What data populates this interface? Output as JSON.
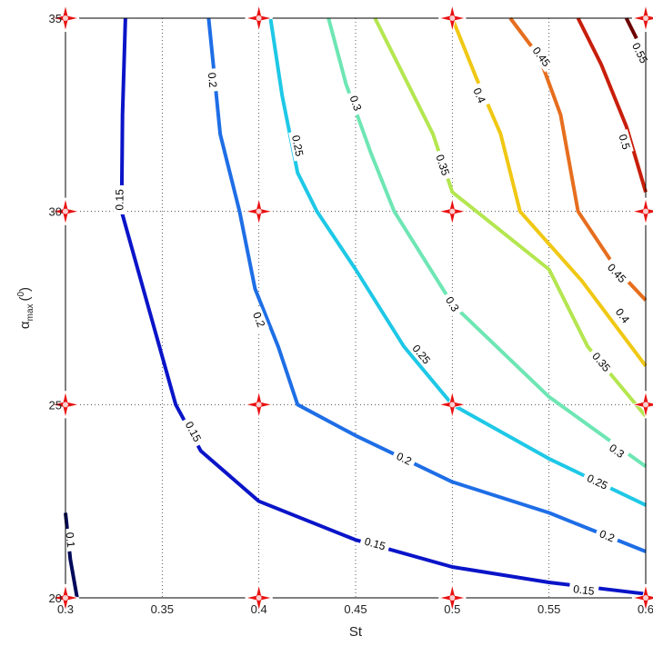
{
  "chart_data": {
    "type": "contour",
    "title": "",
    "xlabel": "St",
    "ylabel_main": "α",
    "ylabel_sub": "max",
    "ylabel_sup": "0",
    "ylabel_unit_open": "(",
    "ylabel_unit_close": ")",
    "xlim": [
      0.3,
      0.6
    ],
    "ylim": [
      20,
      35
    ],
    "xticks": [
      0.3,
      0.35,
      0.4,
      0.45,
      0.5,
      0.55,
      0.6
    ],
    "xtick_labels": [
      "0.3",
      "0.35",
      "0.4",
      "0.45",
      "0.5",
      "0.55",
      "0.6"
    ],
    "yticks": [
      20,
      25,
      30,
      35
    ],
    "ytick_labels": [
      "20",
      "25",
      "30",
      "35"
    ],
    "grid": true,
    "colors": {
      "0.1": "#000a5a",
      "0.15": "#0a14c8",
      "0.2": "#1e6ee6",
      "0.25": "#1ec8e6",
      "0.3": "#6ee6b4",
      "0.35": "#b4e650",
      "0.4": "#f0c814",
      "0.45": "#e66e1e",
      "0.5": "#c81e0a",
      "0.55": "#6e0000"
    },
    "levels": [
      {
        "level": 0.1,
        "label": "0.1",
        "points": [
          [
            0.3,
            22.2
          ],
          [
            0.3025,
            21.0
          ],
          [
            0.306,
            20
          ]
        ],
        "labels": [
          [
            0.3025,
            21.5
          ]
        ]
      },
      {
        "level": 0.15,
        "label": "0.15",
        "points": [
          [
            0.331,
            35
          ],
          [
            0.3295,
            32.5
          ],
          [
            0.329,
            30
          ],
          [
            0.343,
            27.5
          ],
          [
            0.357,
            25
          ],
          [
            0.37,
            23.8
          ],
          [
            0.4,
            22.5
          ],
          [
            0.45,
            21.5
          ],
          [
            0.5,
            20.8
          ],
          [
            0.55,
            20.4
          ],
          [
            0.6,
            20.1
          ]
        ],
        "labels": [
          [
            0.328,
            30.3
          ],
          [
            0.366,
            24.3
          ],
          [
            0.46,
            21.4
          ],
          [
            0.568,
            20.2
          ]
        ]
      },
      {
        "level": 0.2,
        "label": "0.2",
        "points": [
          [
            0.374,
            35
          ],
          [
            0.377,
            33.5
          ],
          [
            0.38,
            32
          ],
          [
            0.39,
            30
          ],
          [
            0.398,
            28
          ],
          [
            0.41,
            26.5
          ],
          [
            0.42,
            25
          ],
          [
            0.45,
            24.2
          ],
          [
            0.5,
            23.0
          ],
          [
            0.55,
            22.2
          ],
          [
            0.6,
            21.2
          ]
        ],
        "labels": [
          [
            0.376,
            33.4
          ],
          [
            0.4,
            27.2
          ],
          [
            0.475,
            23.6
          ],
          [
            0.58,
            21.6
          ]
        ]
      },
      {
        "level": 0.25,
        "label": "0.25",
        "points": [
          [
            0.406,
            35
          ],
          [
            0.412,
            33
          ],
          [
            0.42,
            31
          ],
          [
            0.43,
            30
          ],
          [
            0.45,
            28.5
          ],
          [
            0.475,
            26.5
          ],
          [
            0.5,
            25
          ],
          [
            0.55,
            23.6
          ],
          [
            0.6,
            22.4
          ]
        ],
        "labels": [
          [
            0.42,
            31.7
          ],
          [
            0.484,
            26.3
          ],
          [
            0.575,
            23.0
          ]
        ]
      },
      {
        "level": 0.3,
        "label": "0.3",
        "points": [
          [
            0.436,
            35
          ],
          [
            0.445,
            33.3
          ],
          [
            0.458,
            31.5
          ],
          [
            0.47,
            30
          ],
          [
            0.5,
            27.6
          ],
          [
            0.55,
            25.2
          ],
          [
            0.6,
            23.4
          ]
        ],
        "labels": [
          [
            0.45,
            32.8
          ],
          [
            0.5,
            27.6
          ],
          [
            0.585,
            23.8
          ]
        ]
      },
      {
        "level": 0.35,
        "label": "0.35",
        "points": [
          [
            0.46,
            35
          ],
          [
            0.475,
            33.5
          ],
          [
            0.49,
            32
          ],
          [
            0.5,
            30.5
          ],
          [
            0.55,
            28.5
          ],
          [
            0.57,
            26.5
          ],
          [
            0.6,
            24.7
          ]
        ],
        "labels": [
          [
            0.495,
            31.2
          ],
          [
            0.577,
            26.1
          ]
        ]
      },
      {
        "level": 0.4,
        "label": "0.4",
        "points": [
          [
            0.5,
            35
          ],
          [
            0.512,
            33.5
          ],
          [
            0.525,
            32
          ],
          [
            0.535,
            30
          ],
          [
            0.567,
            28.2
          ],
          [
            0.6,
            26
          ]
        ],
        "labels": [
          [
            0.514,
            33
          ],
          [
            0.588,
            27.3
          ]
        ]
      },
      {
        "level": 0.45,
        "label": "0.45",
        "points": [
          [
            0.53,
            35
          ],
          [
            0.545,
            34
          ],
          [
            0.556,
            32.5
          ],
          [
            0.565,
            30
          ],
          [
            0.585,
            28.5
          ],
          [
            0.6,
            27.7
          ]
        ],
        "labels": [
          [
            0.546,
            34
          ],
          [
            0.585,
            28.4
          ]
        ]
      },
      {
        "level": 0.5,
        "label": "0.5",
        "points": [
          [
            0.565,
            35
          ],
          [
            0.577,
            33.8
          ],
          [
            0.59,
            32.2
          ],
          [
            0.6,
            30.5
          ]
        ],
        "labels": [
          [
            0.589,
            31.8
          ]
        ]
      },
      {
        "level": 0.55,
        "label": "0.55",
        "points": [
          [
            0.59,
            35
          ],
          [
            0.6,
            34
          ]
        ],
        "labels": [
          [
            0.597,
            34.1
          ]
        ]
      }
    ],
    "markers": [
      {
        "x": 0.3,
        "y": 35
      },
      {
        "x": 0.4,
        "y": 35
      },
      {
        "x": 0.5,
        "y": 35
      },
      {
        "x": 0.6,
        "y": 35
      },
      {
        "x": 0.3,
        "y": 30
      },
      {
        "x": 0.4,
        "y": 30
      },
      {
        "x": 0.5,
        "y": 30
      },
      {
        "x": 0.6,
        "y": 30
      },
      {
        "x": 0.3,
        "y": 25
      },
      {
        "x": 0.4,
        "y": 25
      },
      {
        "x": 0.5,
        "y": 25
      },
      {
        "x": 0.6,
        "y": 25
      },
      {
        "x": 0.3,
        "y": 20
      },
      {
        "x": 0.4,
        "y": 20
      },
      {
        "x": 0.5,
        "y": 20
      },
      {
        "x": 0.6,
        "y": 20
      }
    ],
    "marker_color": "#e81010"
  }
}
